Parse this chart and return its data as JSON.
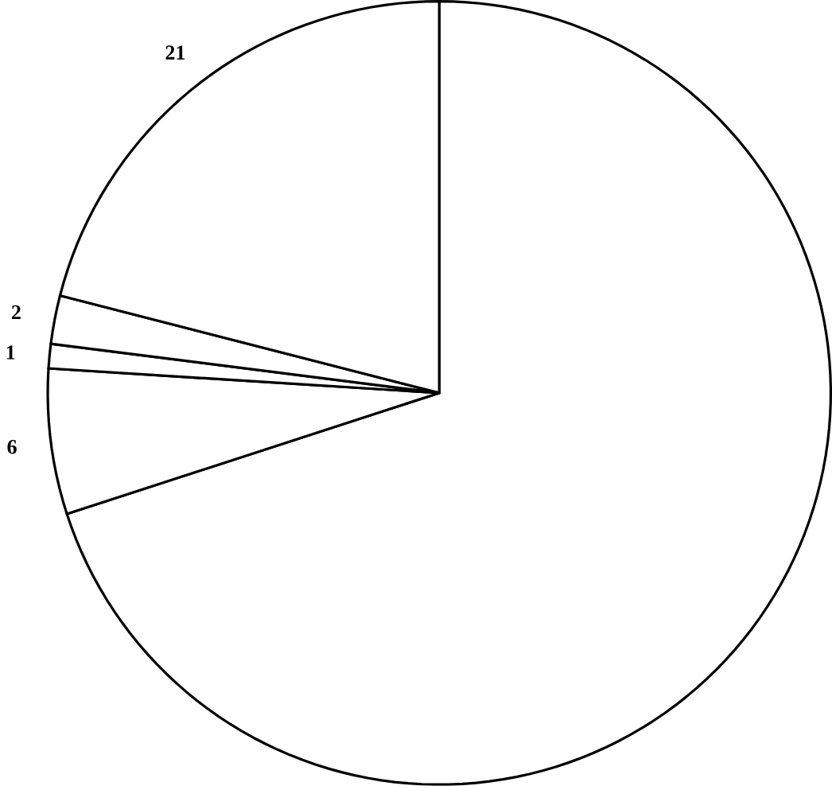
{
  "chart_data": {
    "type": "pie",
    "categories": [
      null,
      null,
      null,
      null,
      null
    ],
    "values": [
      70,
      6,
      1,
      2,
      21
    ],
    "value_labels": [
      null,
      "6",
      "1",
      "2",
      "21"
    ],
    "colors": [
      "#ffffff",
      "#ffffff",
      "#ffffff",
      "#ffffff",
      "#ffffff"
    ]
  }
}
